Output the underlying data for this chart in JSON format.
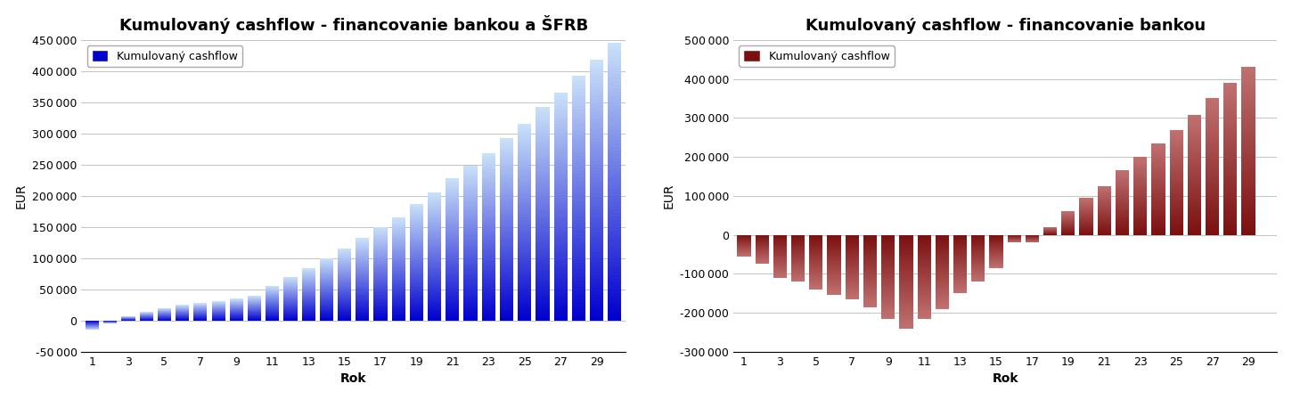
{
  "chart1": {
    "title": "Kumulovaný cashflow - financovanie bankou a ŠFRB",
    "values": [
      -15000,
      -5000,
      7000,
      14000,
      20000,
      25000,
      28000,
      31000,
      35000,
      40000,
      56000,
      70000,
      84000,
      100000,
      115000,
      132000,
      150000,
      165000,
      187000,
      205000,
      228000,
      248000,
      268000,
      292000,
      315000,
      342000,
      365000,
      392000,
      418000,
      445000
    ],
    "xlabel": "Rok",
    "ylabel": "EUR",
    "ylim": [
      -50000,
      450000
    ],
    "yticks": [
      -50000,
      0,
      50000,
      100000,
      150000,
      200000,
      250000,
      300000,
      350000,
      400000,
      450000
    ],
    "legend_label": "Kumulovaný cashflow",
    "bar_color_top": "#0000CD",
    "bar_color_bot": "#C8E0F8"
  },
  "chart2": {
    "title": "Kumulovaný cashflow - financovanie bankou",
    "values": [
      -55000,
      -75000,
      -110000,
      -120000,
      -140000,
      -155000,
      -165000,
      -185000,
      -215000,
      -240000,
      -215000,
      -190000,
      -150000,
      -120000,
      -85000,
      -20000,
      -20000,
      20000,
      60000,
      95000,
      125000,
      165000,
      200000,
      235000,
      268000,
      308000,
      350000,
      390000,
      430000,
      0
    ],
    "xlabel": "Rok",
    "ylabel": "EUR",
    "ylim": [
      -300000,
      500000
    ],
    "yticks": [
      -300000,
      -200000,
      -100000,
      0,
      100000,
      200000,
      300000,
      400000,
      500000
    ],
    "legend_label": "Kumulovaný cashflow",
    "bar_color_top": "#7B1010",
    "bar_color_bot": "#C07070"
  },
  "xtick_labels": [
    "1",
    "",
    "3",
    "",
    "5",
    "",
    "7",
    "",
    "9",
    "",
    "11",
    "",
    "13",
    "",
    "15",
    "",
    "17",
    "",
    "19",
    "",
    "21",
    "",
    "23",
    "",
    "25",
    "",
    "27",
    "",
    "29",
    ""
  ],
  "background_color": "#FFFFFF",
  "title_fontsize": 13,
  "label_fontsize": 10,
  "tick_fontsize": 9
}
